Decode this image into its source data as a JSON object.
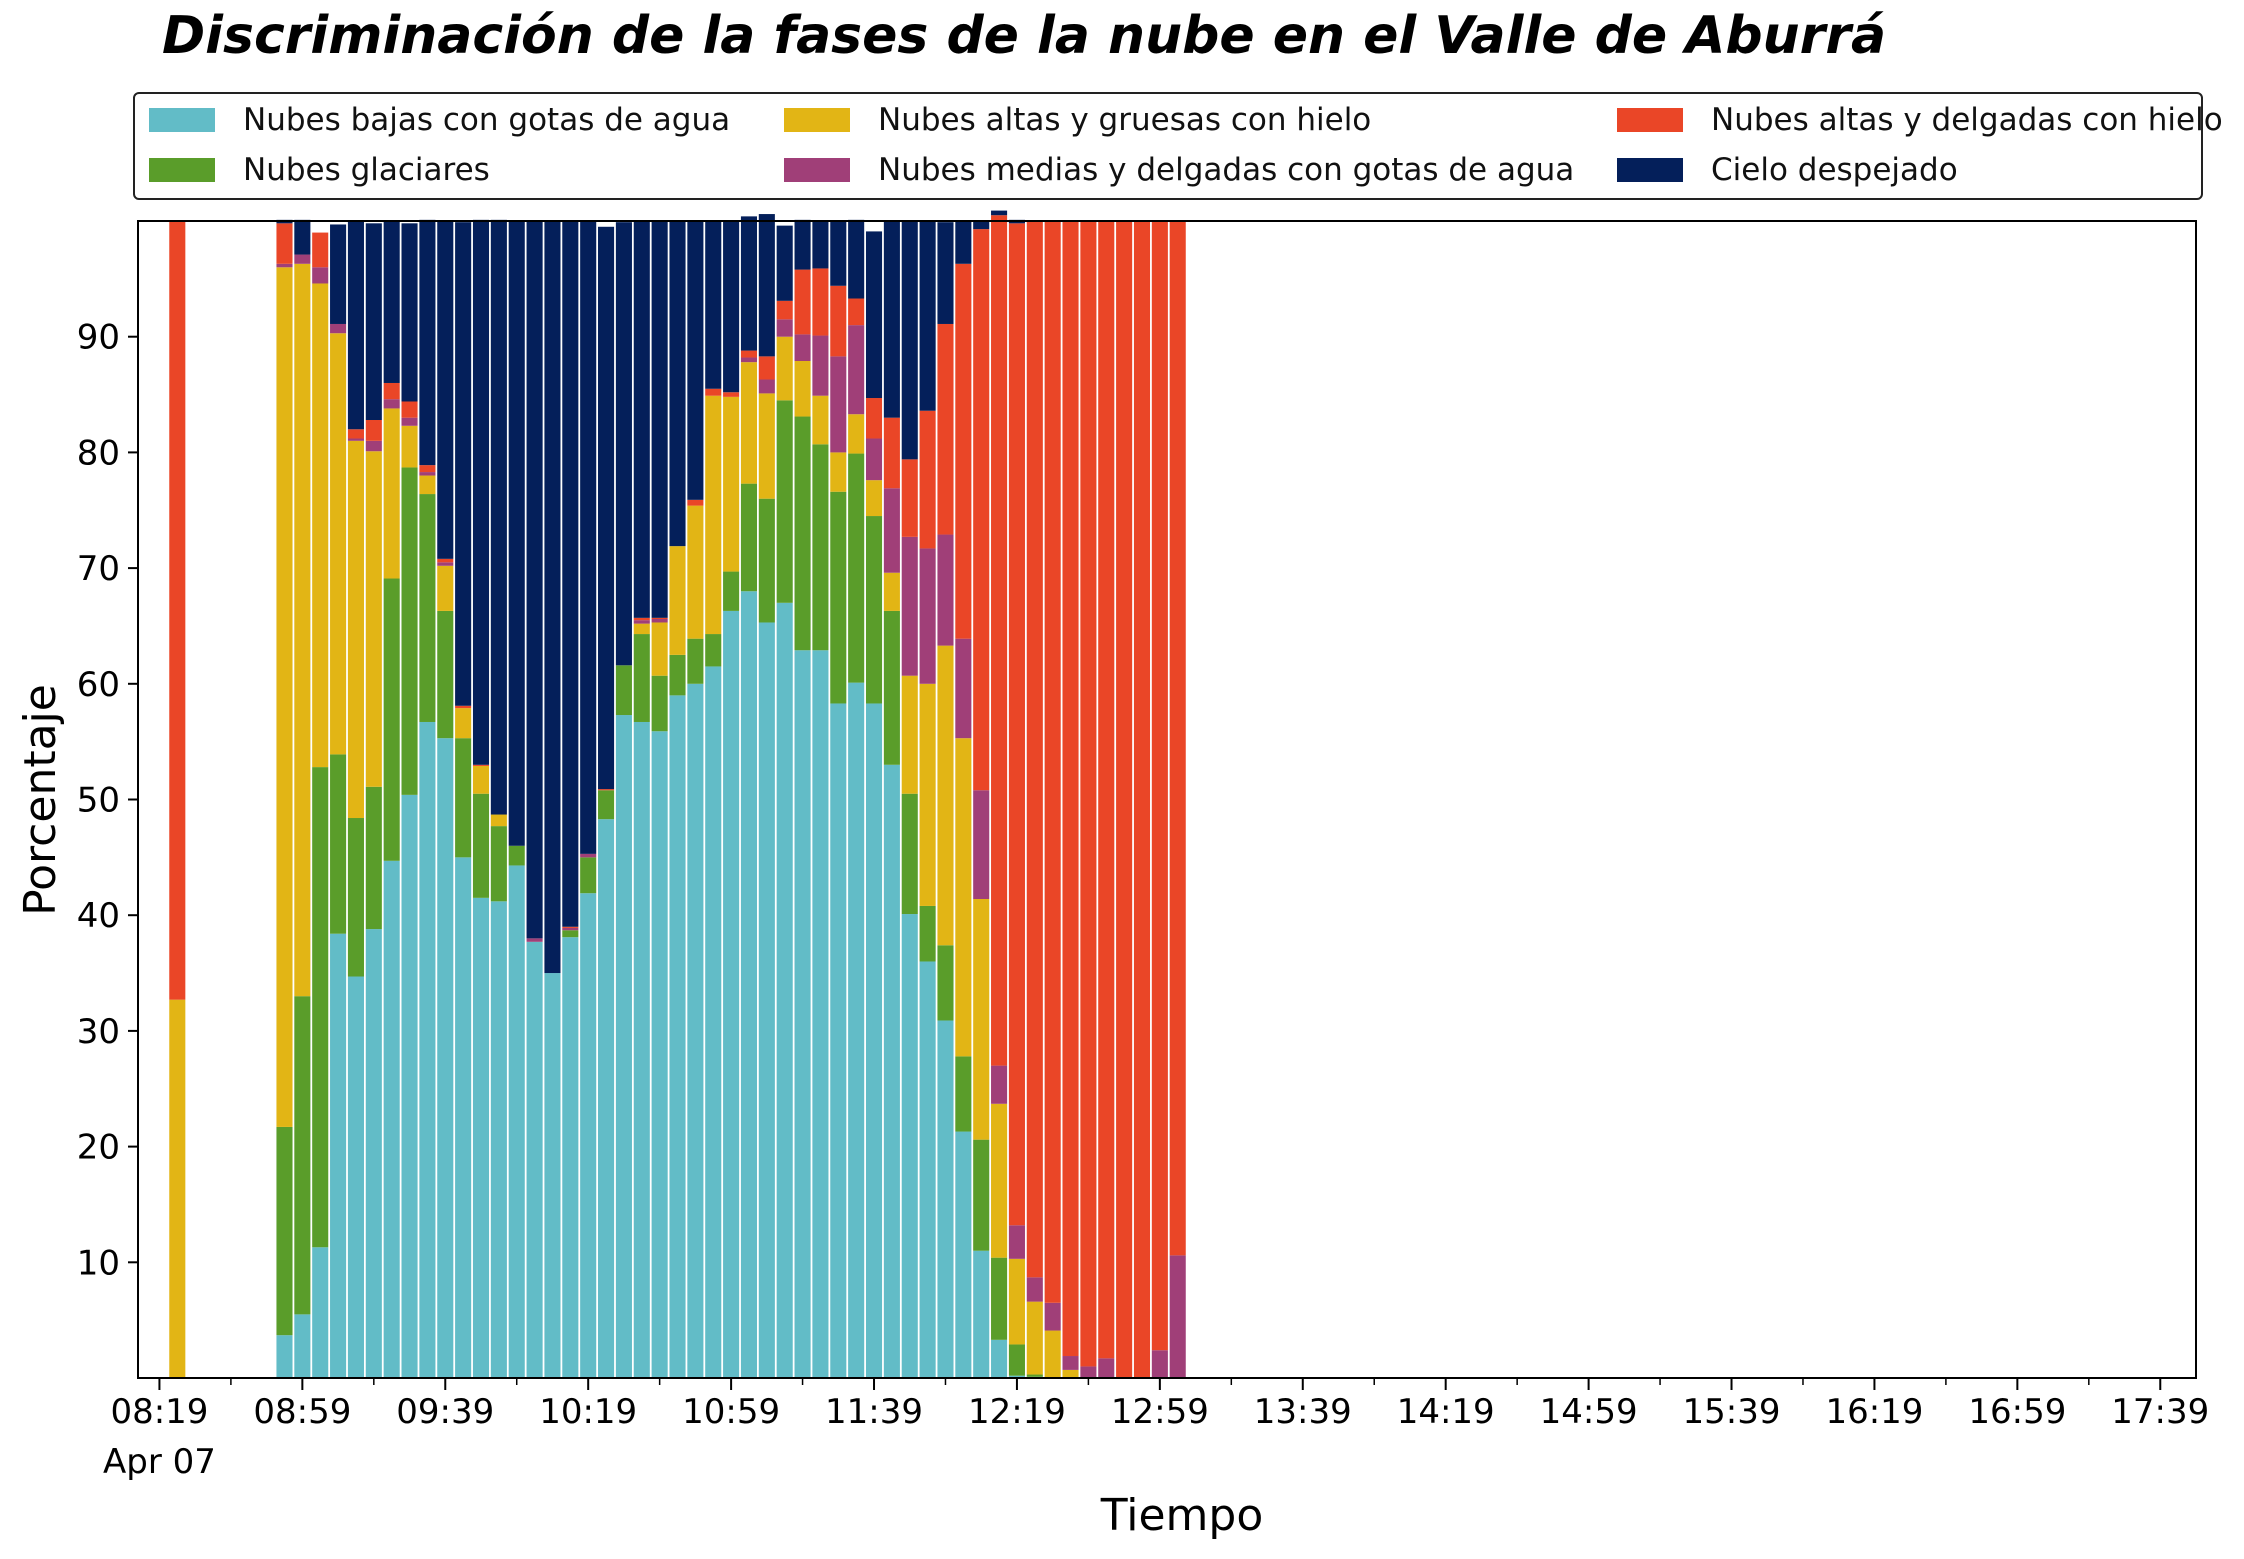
{
  "chart_data": {
    "type": "bar",
    "stacked": true,
    "title": "Discriminación de la fases de la nube en el Valle de Aburrá",
    "xlabel": "Tiempo",
    "ylabel": "Porcentaje",
    "ylim": [
      0,
      100
    ],
    "yticks": [
      10,
      20,
      30,
      40,
      50,
      60,
      70,
      80,
      90
    ],
    "x_tick_labels": [
      "08:19\nApr 07",
      "08:59",
      "09:39",
      "10:19",
      "10:59",
      "11:39",
      "12:19",
      "12:59",
      "13:39",
      "14:19",
      "14:59",
      "15:39",
      "16:19",
      "16:59",
      "17:39"
    ],
    "x_tick_label_lines": [
      [
        "08:19",
        "Apr 07"
      ],
      [
        "08:59"
      ],
      [
        "09:39"
      ],
      [
        "10:19"
      ],
      [
        "10:59"
      ],
      [
        "11:39"
      ],
      [
        "12:19"
      ],
      [
        "12:59"
      ],
      [
        "13:39"
      ],
      [
        "14:19"
      ],
      [
        "14:59"
      ],
      [
        "15:39"
      ],
      [
        "16:19"
      ],
      [
        "16:59"
      ],
      [
        "17:39"
      ]
    ],
    "x_ticks_minutes": [
      499,
      539,
      579,
      619,
      659,
      699,
      739,
      779,
      819,
      859,
      899,
      939,
      979,
      1019,
      1059
    ],
    "xlim_minutes": [
      493,
      1069
    ],
    "bar_width_minutes": 4.5,
    "legend_placement": "top, outside plot, 3 columns",
    "grid": false,
    "times": [
      "08:24",
      "08:54",
      "08:59",
      "09:04",
      "09:09",
      "09:14",
      "09:19",
      "09:24",
      "09:29",
      "09:34",
      "09:39",
      "09:44",
      "09:49",
      "09:54",
      "09:59",
      "10:04",
      "10:09",
      "10:14",
      "10:19",
      "10:24",
      "10:29",
      "10:34",
      "10:39",
      "10:44",
      "10:49",
      "10:54",
      "10:59",
      "11:04",
      "11:09",
      "11:14",
      "11:19",
      "11:24",
      "11:29",
      "11:34",
      "11:39",
      "11:44",
      "11:49",
      "11:54",
      "11:59",
      "12:04",
      "12:09",
      "12:14",
      "12:19",
      "12:24",
      "12:29",
      "12:34",
      "12:39",
      "12:44",
      "12:49",
      "12:54",
      "12:59",
      "13:04",
      "13:09",
      "13:14",
      "13:19",
      "13:24",
      "13:29",
      "13:34",
      "13:39",
      "13:44",
      "13:49",
      "13:54",
      "13:59"
    ],
    "series": [
      {
        "name": "Nubes bajas con gotas de agua",
        "color": "#62bcc7",
        "values": [
          0,
          3.7,
          5.5,
          11.3,
          38.4,
          34.7,
          38.8,
          44.7,
          50.4,
          56.7,
          55.3,
          45,
          41.5,
          41.2,
          44.3,
          37.7,
          35,
          38.1,
          41.9,
          48.3,
          57.3,
          56.7,
          55.9,
          59,
          60,
          61.5,
          66.3,
          68,
          65.3,
          67,
          62.9,
          62.9,
          58.3,
          60.1,
          58.3,
          53,
          40.1,
          36,
          30.9,
          21.3,
          11,
          3.3,
          0.2,
          0.1,
          0,
          0,
          0,
          0,
          0,
          0,
          0,
          0,
          0,
          0,
          0,
          0,
          0,
          0,
          0,
          0,
          0,
          0,
          0
        ]
      },
      {
        "name": "Nubes glaciares",
        "color": "#5a9d2a",
        "values": [
          0,
          18,
          27.5,
          41.5,
          15.5,
          13.7,
          12.3,
          24.4,
          28.3,
          19.7,
          11,
          10.3,
          9,
          6.5,
          1.7,
          0,
          0,
          0.6,
          3.1,
          2.5,
          4.3,
          7.6,
          4.8,
          3.5,
          3.9,
          2.8,
          3.4,
          9.3,
          10.7,
          17.5,
          20.2,
          17.8,
          18.3,
          19.8,
          16.2,
          13.3,
          10.4,
          4.8,
          6.5,
          6.5,
          9.6,
          7.1,
          2.7,
          0.2,
          0,
          0,
          0,
          0,
          0,
          0,
          0,
          0,
          0,
          0,
          0,
          0,
          0,
          0,
          0,
          0,
          0,
          0,
          0
        ]
      },
      {
        "name": "Nubes altas y gruesas con hielo",
        "color": "#e2b515",
        "values": [
          32.7,
          74.3,
          63.3,
          41.8,
          36.4,
          32.6,
          29,
          14.7,
          3.6,
          1.6,
          3.9,
          2.6,
          2.4,
          1,
          0,
          0,
          0,
          0,
          0,
          0,
          0,
          0.9,
          4.6,
          9.4,
          11.5,
          20.6,
          15.1,
          10.5,
          9.1,
          5.5,
          4.8,
          4.2,
          3.4,
          3.4,
          3.1,
          3.3,
          10.2,
          19.2,
          25.9,
          27.5,
          20.8,
          13.3,
          7.4,
          6.3,
          4.1,
          0.7,
          0,
          0,
          0,
          0,
          0,
          0,
          0,
          0,
          0,
          0,
          0,
          0,
          0,
          0,
          0,
          0,
          0
        ]
      },
      {
        "name": "Nubes medias y delgadas con gotas de agua",
        "color": "#a03f78",
        "values": [
          0,
          0.3,
          0.8,
          1.4,
          0.8,
          0.2,
          0.9,
          0.8,
          0.7,
          0.3,
          0.3,
          0,
          0,
          0,
          0,
          0.3,
          0,
          0.2,
          0.3,
          0,
          0,
          0.3,
          0.3,
          0,
          0,
          0,
          0,
          0.4,
          1.2,
          1.5,
          2.3,
          5.2,
          8.3,
          7.7,
          3.6,
          7.3,
          12,
          11.7,
          9.6,
          8.6,
          9.4,
          3.3,
          2.9,
          2.1,
          2.4,
          1.2,
          1,
          1.7,
          0,
          0,
          2.4,
          10.6,
          0,
          0,
          0,
          0,
          0,
          0,
          0,
          0,
          0,
          0,
          0
        ]
      },
      {
        "name": "Nubes altas y delgadas con hielo",
        "color": "#ea4627",
        "values": [
          67.3,
          3.5,
          0,
          3,
          0,
          0.8,
          1.8,
          1.4,
          1.4,
          0.6,
          0.3,
          0.2,
          0.1,
          0,
          0,
          0,
          0,
          0.1,
          0,
          0.1,
          0,
          0.2,
          0.1,
          0,
          0.5,
          0.6,
          0.4,
          0.6,
          2,
          1.6,
          5.6,
          5.8,
          6.1,
          2.3,
          3.5,
          6.1,
          6.7,
          11.9,
          18.2,
          32.4,
          48.5,
          73.5,
          86.6,
          91.3,
          93.5,
          98.1,
          99,
          98.3,
          100,
          100,
          97.6,
          89.4,
          0,
          0,
          0,
          0,
          0,
          0,
          0,
          0,
          0,
          0,
          0
        ]
      },
      {
        "name": "Cielo despejado",
        "color": "#041f5a",
        "values": [
          0,
          0.3,
          3,
          0,
          8.6,
          18,
          17,
          14,
          15.4,
          21.2,
          29.2,
          41.8,
          47.1,
          51.4,
          54,
          62,
          65,
          61,
          54.7,
          48.6,
          38.3,
          34.3,
          34.3,
          28.1,
          24.1,
          14.5,
          14.8,
          11.6,
          12.3,
          6.5,
          4.3,
          4.1,
          5.6,
          6.8,
          14.4,
          17,
          20.6,
          16.4,
          8.8,
          3.7,
          0.7,
          0.4,
          0.3,
          0,
          0,
          0,
          0,
          0,
          0,
          0,
          0,
          0,
          0,
          0,
          0,
          0,
          0,
          0,
          0,
          0,
          0,
          0,
          0
        ]
      }
    ]
  }
}
